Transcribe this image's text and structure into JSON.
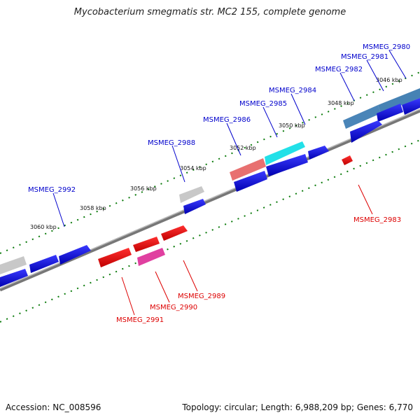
{
  "title": "Mycobacterium smegmatis str. MC2 155, complete genome",
  "accession": "Accession: NC_008596",
  "topology": "Topology: circular; Length: 6,988,209 bp; Genes: 6,770",
  "kbp_labels": [
    "3046 kbp",
    "3048 kbp",
    "3050 kbp",
    "3052 kbp",
    "3054 kbp",
    "3056 kbp",
    "3058 kbp",
    "3060 kbp"
  ],
  "forward_labels": [
    "MSMEG_2980",
    "MSMEG_2981",
    "MSMEG_2982",
    "MSMEG_2984",
    "MSMEG_2985",
    "MSMEG_2986",
    "MSMEG_2988",
    "MSMEG_2992"
  ],
  "reverse_labels": [
    "MSMEG_2983",
    "MSMEG_2989",
    "MSMEG_2990",
    "MSMEG_2991"
  ],
  "colors": {
    "forward": "#0000cc",
    "reverse": "#dd0000",
    "axis": "#888888",
    "ticks": "#0a7a0a"
  }
}
